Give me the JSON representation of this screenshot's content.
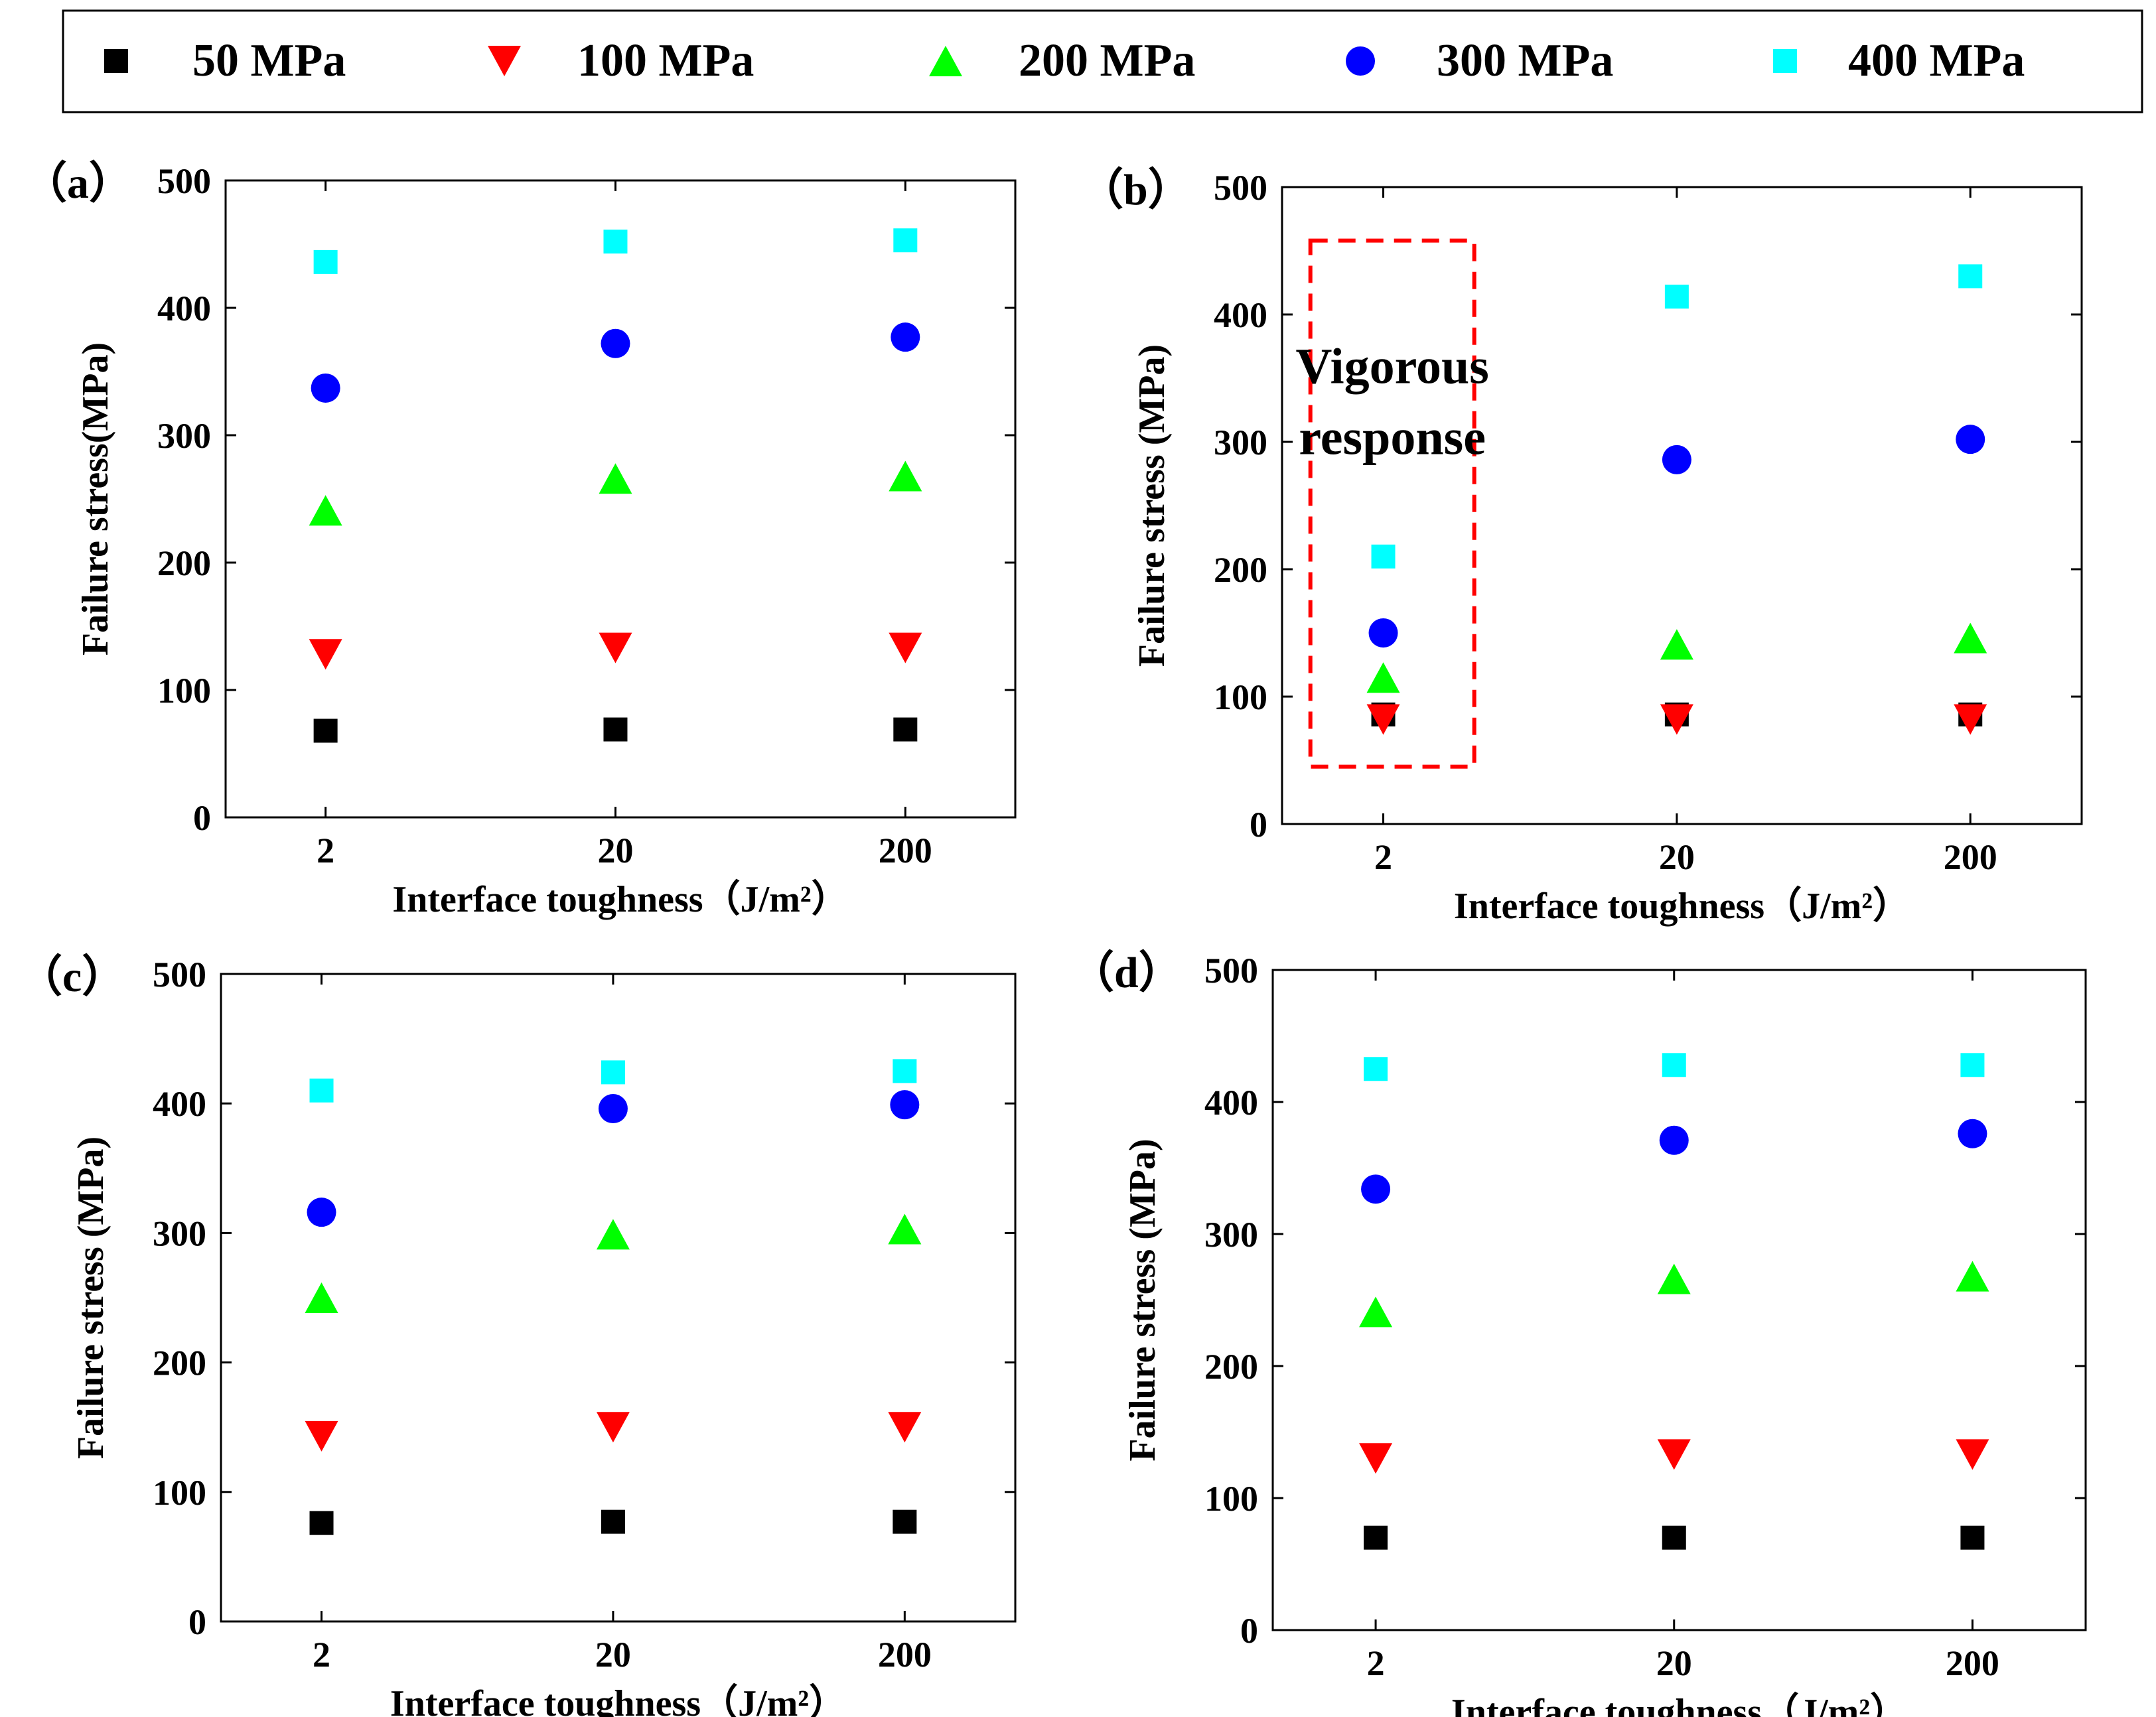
{
  "colors": {
    "s50": "#000000",
    "s100": "#ff0000",
    "s200": "#00ff00",
    "s300": "#0000ff",
    "s400": "#00ffff",
    "highlight": "#ff0000"
  },
  "legend": [
    {
      "name": "50 MPa",
      "marker": "square",
      "color": "#000000"
    },
    {
      "name": "100 MPa",
      "marker": "triangle-down",
      "color": "#ff0000"
    },
    {
      "name": "200 MPa",
      "marker": "triangle-up",
      "color": "#00ff00"
    },
    {
      "name": "300 MPa",
      "marker": "circle",
      "color": "#0000ff"
    },
    {
      "name": "400 MPa",
      "marker": "square",
      "color": "#00ffff"
    }
  ],
  "chart_data": [
    {
      "panel": "a",
      "panel_label": "（a）",
      "type": "scatter",
      "categories": [
        "2",
        "20",
        "200"
      ],
      "xlabel": "Interface toughness（J/m²）",
      "ylabel": "Failure stress(MPa)",
      "ylim": [
        0,
        500
      ],
      "yticks": [
        0,
        100,
        200,
        300,
        400,
        500
      ],
      "series": [
        {
          "name": "50 MPa",
          "values": [
            68,
            69,
            69
          ]
        },
        {
          "name": "100 MPa",
          "values": [
            128,
            133,
            133
          ]
        },
        {
          "name": "200 MPa",
          "values": [
            241,
            266,
            268
          ]
        },
        {
          "name": "300 MPa",
          "values": [
            337,
            372,
            377
          ]
        },
        {
          "name": "400 MPa",
          "values": [
            436,
            452,
            453
          ]
        }
      ]
    },
    {
      "panel": "b",
      "panel_label": "（b）",
      "type": "scatter",
      "categories": [
        "2",
        "20",
        "200"
      ],
      "xlabel": "Interface toughness（J/m²）",
      "ylabel": "Failure stress (MPa)",
      "ylim": [
        0,
        500
      ],
      "yticks": [
        0,
        100,
        200,
        300,
        400,
        500
      ],
      "annotation": {
        "text_line1": "Vigorous",
        "text_line2": "response",
        "x_range": [
          0.48,
          1.4
        ],
        "y_range": [
          45,
          458
        ]
      },
      "series": [
        {
          "name": "50 MPa",
          "values": [
            86,
            86,
            86
          ]
        },
        {
          "name": "100 MPa",
          "values": [
            82,
            82,
            82
          ]
        },
        {
          "name": "200 MPa",
          "values": [
            115,
            141,
            146
          ]
        },
        {
          "name": "300 MPa",
          "values": [
            150,
            286,
            302
          ]
        },
        {
          "name": "400 MPa",
          "values": [
            210,
            414,
            430
          ]
        }
      ]
    },
    {
      "panel": "c",
      "panel_label": "（c）",
      "type": "scatter",
      "categories": [
        "2",
        "20",
        "200"
      ],
      "xlabel": "Interface toughness（J/m²）",
      "ylabel": "Failure stress (MPa)",
      "ylim": [
        0,
        500
      ],
      "yticks": [
        0,
        100,
        200,
        300,
        400,
        500
      ],
      "series": [
        {
          "name": "50 MPa",
          "values": [
            76,
            77,
            77
          ]
        },
        {
          "name": "100 MPa",
          "values": [
            143,
            150,
            150
          ]
        },
        {
          "name": "200 MPa",
          "values": [
            250,
            299,
            303
          ]
        },
        {
          "name": "300 MPa",
          "values": [
            316,
            396,
            399
          ]
        },
        {
          "name": "400 MPa",
          "values": [
            410,
            424,
            425
          ]
        }
      ]
    },
    {
      "panel": "d",
      "panel_label": "（d）",
      "type": "scatter",
      "categories": [
        "2",
        "20",
        "200"
      ],
      "xlabel": "Interface toughness（J/m²）",
      "ylabel": "Failure stress (MPa)",
      "ylim": [
        0,
        500
      ],
      "yticks": [
        0,
        100,
        200,
        300,
        400,
        500
      ],
      "series": [
        {
          "name": "50 MPa",
          "values": [
            70,
            70,
            70
          ]
        },
        {
          "name": "100 MPa",
          "values": [
            130,
            133,
            133
          ]
        },
        {
          "name": "200 MPa",
          "values": [
            241,
            266,
            268
          ]
        },
        {
          "name": "300 MPa",
          "values": [
            334,
            371,
            376
          ]
        },
        {
          "name": "400 MPa",
          "values": [
            425,
            428,
            428
          ]
        }
      ]
    }
  ]
}
